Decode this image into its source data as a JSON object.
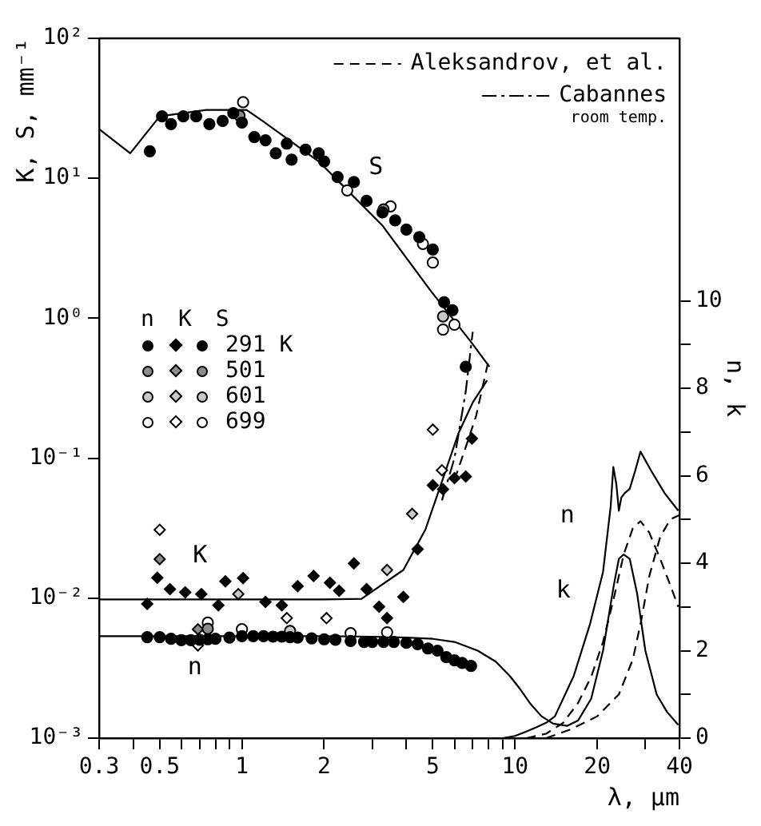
{
  "chart_data": {
    "type": "scatter",
    "xlabel": "λ, μm",
    "ylabel": "K, S, mm⁻¹",
    "y2label": "n, k",
    "legend_title": "n K S",
    "legend": "top right",
    "log": "xy",
    "xlim": [
      0.3,
      40
    ],
    "xticks": [
      0.3,
      {
        "value": 0.4,
        "label": null
      },
      0.5,
      {
        "value": 0.6,
        "label": null
      },
      {
        "value": 0.7,
        "label": null
      },
      {
        "value": 0.8,
        "label": null
      },
      {
        "value": 0.9,
        "label": null
      },
      1,
      2,
      {
        "value": 3,
        "label": null
      },
      {
        "value": 4,
        "label": null
      },
      5,
      {
        "value": 6,
        "label": null
      },
      {
        "value": 7,
        "label": null
      },
      {
        "value": 8,
        "label": null
      },
      {
        "value": 9,
        "label": null
      },
      10,
      20,
      {
        "value": 30,
        "label": null
      },
      40
    ],
    "ylim": [
      0.001,
      100
    ],
    "yticks": [
      {
        "value": 0.001,
        "label": "10⁻³"
      },
      {
        "value": 0.01,
        "label": "10⁻²"
      },
      {
        "value": 0.1,
        "label": "10⁻¹"
      },
      {
        "value": 1,
        "label": "10⁰"
      },
      {
        "value": 10,
        "label": "10¹"
      },
      {
        "value": 100,
        "label": "10²"
      }
    ],
    "y2lim": [
      0,
      16
    ],
    "y2ticks": [
      0,
      {
        "value": 1,
        "label": null
      },
      2,
      {
        "value": 3,
        "label": null
      },
      4,
      {
        "value": 5,
        "label": null
      },
      6,
      {
        "value": 7,
        "label": null
      },
      8,
      {
        "value": 9,
        "label": null
      },
      10
    ],
    "series": [
      {
        "color": "#000000",
        "marker": "circle",
        "axis": "y2",
        "x": [
          0.45,
          0.5,
          0.55,
          0.6,
          0.65,
          0.7,
          0.75,
          0.8,
          0.9,
          1.0,
          1.1,
          1.2,
          1.3,
          1.4,
          1.5,
          1.6,
          1.8,
          2.0,
          2.2,
          2.5,
          2.8,
          3.0,
          3.3,
          3.6,
          4.0,
          4.4,
          4.8,
          5.2,
          5.6,
          6.0,
          6.4,
          6.9
        ],
        "values": [
          2.31,
          2.31,
          2.27,
          2.24,
          2.24,
          2.25,
          2.26,
          2.27,
          2.3,
          2.33,
          2.33,
          2.33,
          2.32,
          2.32,
          2.31,
          2.3,
          2.28,
          2.26,
          2.25,
          2.22,
          2.2,
          2.2,
          2.2,
          2.2,
          2.18,
          2.15,
          2.05,
          2.0,
          1.85,
          1.78,
          1.72,
          1.65
        ]
      },
      {
        "color": "#000000",
        "marker": "diamond",
        "x": [
          0.45,
          0.49,
          0.545,
          0.62,
          0.71,
          0.82,
          0.87,
          1.01,
          1.22,
          1.4,
          1.6,
          1.83,
          2.1,
          2.27,
          2.57,
          2.86,
          3.18,
          3.4,
          3.9,
          4.4,
          5.0,
          5.45,
          6.0,
          6.6,
          6.95
        ],
        "values": [
          0.0091,
          0.014,
          0.0116,
          0.011,
          0.0107,
          0.0089,
          0.0132,
          0.0139,
          0.0094,
          0.0089,
          0.0122,
          0.0144,
          0.0129,
          0.0113,
          0.0177,
          0.0116,
          0.0087,
          0.0072,
          0.0102,
          0.0224,
          0.064,
          0.06,
          0.072,
          0.074,
          0.138
        ]
      },
      {
        "name": "291 K",
        "color": "#000000",
        "marker": "circle",
        "x": [
          0.46,
          0.51,
          0.55,
          0.61,
          0.68,
          0.76,
          0.85,
          0.93,
          1.0,
          1.11,
          1.22,
          1.33,
          1.46,
          1.52,
          1.71,
          1.91,
          2.0,
          2.24,
          2.57,
          2.86,
          3.27,
          3.64,
          4.0,
          4.46,
          5.0,
          5.5,
          5.9,
          6.6
        ],
        "values": [
          15.6,
          27.7,
          24.4,
          27.7,
          27.7,
          24.4,
          25.7,
          29.2,
          25,
          19.7,
          18.7,
          15.1,
          17.7,
          13.6,
          16,
          15.1,
          13.2,
          10.2,
          9.4,
          6.9,
          5.7,
          5.0,
          4.3,
          3.8,
          3.1,
          1.3,
          1.14,
          0.45
        ]
      },
      {
        "color": "#8c8c8c",
        "marker": "circle",
        "axis": "y2",
        "x": [
          0.75
        ],
        "values": [
          2.5
        ]
      },
      {
        "color": "#8c8c8c",
        "marker": "diamond",
        "x": [
          0.5,
          0.69
        ],
        "values": [
          0.019,
          0.006
        ]
      },
      {
        "name": "501",
        "color": "#8c8c8c",
        "marker": "circle",
        "x": [
          0.98,
          3.3
        ],
        "values": [
          28,
          6
        ]
      },
      {
        "color": "#c8c8c8",
        "marker": "circle",
        "axis": "y2",
        "x": [
          1.5
        ],
        "values": [
          2.45
        ]
      },
      {
        "color": "#c8c8c8",
        "marker": "diamond",
        "x": [
          0.97,
          3.4,
          4.2
        ],
        "values": [
          0.0107,
          0.0159,
          0.04
        ]
      },
      {
        "name": "601",
        "color": "#c8c8c8",
        "marker": "circle",
        "x": [
          5.45
        ],
        "values": [
          1.03
        ]
      },
      {
        "color": "#ffffff",
        "marker": "circle",
        "axis": "y2",
        "x": [
          0.75,
          1.0,
          2.5,
          3.4
        ],
        "values": [
          2.64,
          2.49,
          2.4,
          2.42
        ]
      },
      {
        "color": "#ffffff",
        "marker": "diamond",
        "x": [
          0.5,
          0.69,
          1.46,
          2.04,
          5.0,
          5.4
        ],
        "values": [
          0.0308,
          0.0046,
          0.0072,
          0.0072,
          0.16,
          0.082
        ]
      },
      {
        "name": "699",
        "color": "#ffffff",
        "marker": "circle",
        "x": [
          1.01,
          2.43,
          3.5,
          4.6,
          5.0,
          5.45,
          6.0
        ],
        "values": [
          35,
          8.2,
          6.3,
          3.4,
          2.5,
          0.83,
          0.9
        ]
      },
      {
        "type": "line",
        "color": "#000000",
        "line_style": "solid",
        "x": [
          0.3,
          0.39,
          0.5,
          0.74,
          1.04,
          1.19,
          1.91,
          3.27,
          4.9,
          6.85,
          8.06
        ],
        "values": [
          22.5,
          15.1,
          27.7,
          30.8,
          30.8,
          25.7,
          13.2,
          4.6,
          1.58,
          0.69,
          0.45
        ]
      },
      {
        "type": "line",
        "color": "#000000",
        "line_style": "solid",
        "x": [
          0.3,
          1,
          2,
          2.74,
          3.9,
          4.7,
          5.4,
          6.2,
          7.0,
          7.9
        ],
        "values": [
          0.0098,
          0.0098,
          0.0098,
          0.0099,
          0.0159,
          0.031,
          0.068,
          0.15,
          0.25,
          0.36
        ]
      },
      {
        "type": "line",
        "color": "#000000",
        "line_style": "solid",
        "axis": "y2",
        "x": [
          0.3,
          1,
          2,
          3,
          4,
          5,
          6,
          7.3,
          8.5,
          9.6,
          10.5,
          11.4,
          12.5,
          13.8,
          15.5,
          17,
          19,
          21,
          23,
          24,
          25,
          26.3,
          28,
          30,
          33,
          36,
          39.6
        ],
        "values": [
          2.33,
          2.33,
          2.33,
          2.32,
          2.3,
          2.27,
          2.2,
          2.0,
          1.75,
          1.41,
          1.1,
          0.78,
          0.5,
          0.33,
          0.28,
          0.4,
          0.9,
          2.0,
          3.5,
          4.1,
          4.2,
          4.1,
          3.3,
          2.0,
          1.0,
          0.6,
          0.3
        ]
      },
      {
        "type": "line",
        "color": "#000000",
        "line_style": "solid",
        "axis": "y2",
        "x": [
          9,
          10,
          11,
          12,
          13,
          14,
          16.4,
          18.8,
          21,
          22.4,
          22.9,
          23.5,
          24.0,
          24.5,
          25.2,
          26.3,
          27.5,
          28.8,
          31.6,
          35.3,
          39.6
        ],
        "values": [
          0,
          0.05,
          0.15,
          0.25,
          0.35,
          0.5,
          1.42,
          2.6,
          3.8,
          5.3,
          6.2,
          5.8,
          5.2,
          5.5,
          5.6,
          5.7,
          6.1,
          6.55,
          6.1,
          5.6,
          5.2
        ]
      },
      {
        "type": "line",
        "name": "Aleksandrov, et al.",
        "color": "#000000",
        "line_style": "dashed",
        "x": [
          6.0,
          6.6,
          7.2,
          8.0
        ],
        "values": [
          0.07,
          0.12,
          0.2,
          0.5
        ]
      },
      {
        "type": "line",
        "name": "Cabannes",
        "color": "#000000",
        "line_style": "dashdot",
        "x": [
          5.4,
          6.0,
          6.6,
          7.0
        ],
        "values": [
          0.05,
          0.1,
          0.3,
          0.8
        ]
      },
      {
        "type": "line",
        "color": "#000000",
        "line_style": "dashed",
        "axis": "y2",
        "x": [
          11,
          13,
          15,
          17,
          19,
          21,
          23,
          25,
          27,
          28.8,
          31,
          34,
          37,
          39.6
        ],
        "values": [
          0,
          0.1,
          0.35,
          0.8,
          1.4,
          2.2,
          3.2,
          4.2,
          4.8,
          4.96,
          4.7,
          4.1,
          3.5,
          3.0
        ]
      },
      {
        "type": "line",
        "color": "#000000",
        "line_style": "dashed",
        "axis": "y2",
        "x": [
          13,
          16,
          20,
          24,
          27,
          29,
          31,
          34,
          37,
          40
        ],
        "values": [
          0,
          0.2,
          0.5,
          1.0,
          1.8,
          2.7,
          3.7,
          4.6,
          5.0,
          5.1
        ]
      }
    ],
    "annotations": [
      "room temp.",
      "S",
      "K",
      "n",
      "n",
      "k"
    ]
  }
}
